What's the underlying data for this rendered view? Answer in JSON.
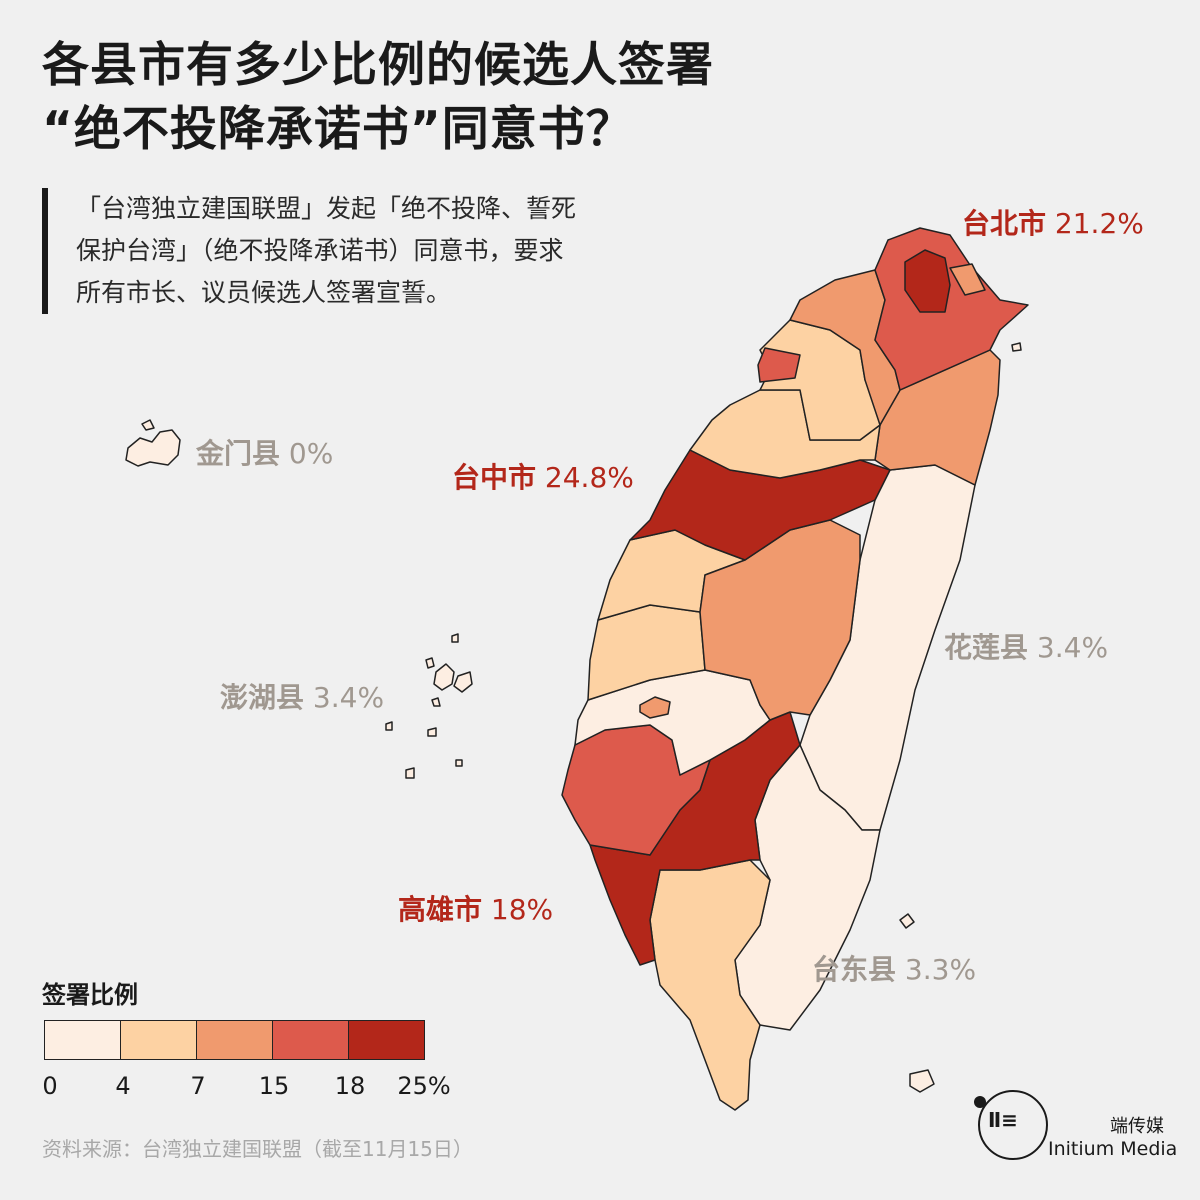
{
  "title": {
    "line1": "各县市有多少比例的候选人签署",
    "line2": "“绝不投降承诺书”同意书？"
  },
  "intro": {
    "line1": "「台湾独立建国联盟」发起「绝不投降、誓死",
    "line2": "保护台湾」（绝不投降承诺书）同意书，要求",
    "line3": "所有市长、议员候选人签署宣誓。"
  },
  "colors": {
    "c0": "#fdeee2",
    "c1": "#fdd2a3",
    "c2": "#f09a6e",
    "c3": "#dd5a4c",
    "c4": "#b3271a",
    "background": "#f0f0f0",
    "accent_red": "#b3271a",
    "muted_grey": "#a09890"
  },
  "labels": {
    "taipei": {
      "name": "台北市",
      "value": "21.2%"
    },
    "taichung": {
      "name": "台中市",
      "value": "24.8%"
    },
    "kinmen": {
      "name": "金门县",
      "value": "0%"
    },
    "hualien": {
      "name": "花莲县",
      "value": "3.4%"
    },
    "penghu": {
      "name": "澎湖县",
      "value": "3.4%"
    },
    "kaohsiung": {
      "name": "高雄市",
      "value": "18%"
    },
    "taitung": {
      "name": "台东县",
      "value": "3.3%"
    }
  },
  "legend": {
    "title": "签署比例",
    "ticks": [
      "0",
      "4",
      "7",
      "15",
      "18",
      "25%"
    ]
  },
  "source": "资料来源：台湾独立建国联盟（截至11月15日）",
  "brand": {
    "cn": "端传媒",
    "en": "Initium Media"
  }
}
